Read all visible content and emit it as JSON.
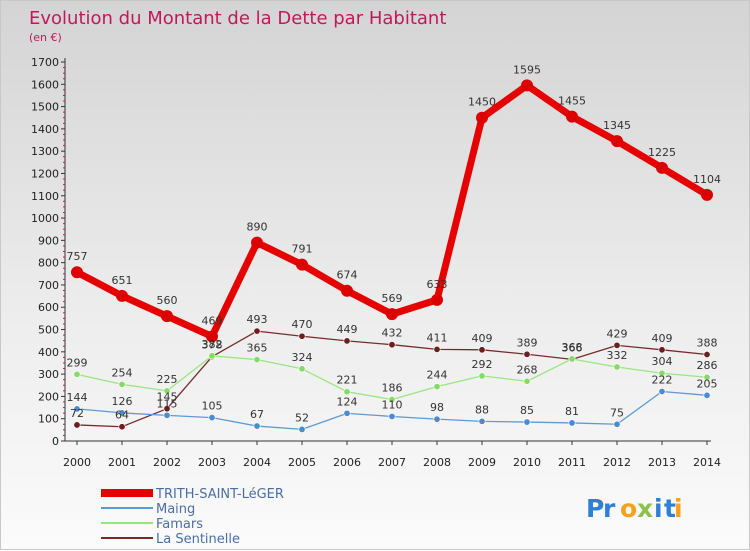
{
  "title": "Evolution du Montant de la Dette par Habitant",
  "subtitle": "(en €)",
  "logo": "Proxiti",
  "colors": {
    "title": "#c2185b",
    "legend_text": "#4a6fa5"
  },
  "chart_data": {
    "type": "line",
    "title": "Evolution du Montant de la Dette par Habitant",
    "subtitle": "(en €)",
    "x": [
      "2000",
      "2001",
      "2002",
      "2003",
      "2004",
      "2005",
      "2006",
      "2007",
      "2008",
      "2009",
      "2010",
      "2011",
      "2012",
      "2013",
      "2014"
    ],
    "ylim": [
      0,
      1700
    ],
    "yticks": [
      0,
      100,
      200,
      300,
      400,
      500,
      600,
      700,
      800,
      900,
      1000,
      1100,
      1200,
      1300,
      1400,
      1500,
      1600,
      1700
    ],
    "grid": false,
    "legend_position": "bottom-left",
    "series": [
      {
        "name": "TRITH-SAINT-LéGER",
        "color": "#e60000",
        "marker": "#dd0000",
        "width": 7,
        "values": [
          757,
          651,
          560,
          469,
          890,
          791,
          674,
          569,
          633,
          1450,
          1595,
          1455,
          1345,
          1225,
          1104
        ]
      },
      {
        "name": "Maing",
        "color": "#5b9bd5",
        "marker": "#4a8ccd",
        "width": 1.3,
        "values": [
          144,
          126,
          115,
          105,
          67,
          52,
          124,
          110,
          98,
          88,
          85,
          81,
          75,
          222,
          205
        ]
      },
      {
        "name": "Famars",
        "color": "#99e67f",
        "marker": "#86da6a",
        "width": 1.3,
        "values": [
          299,
          254,
          225,
          382,
          365,
          324,
          221,
          186,
          244,
          292,
          268,
          368,
          332,
          304,
          286
        ]
      },
      {
        "name": "La Sentinelle",
        "color": "#7a2a2a",
        "marker": "#6b1f1f",
        "width": 1.3,
        "values": [
          72,
          64,
          145,
          378,
          493,
          470,
          449,
          432,
          411,
          409,
          389,
          366,
          429,
          409,
          388
        ]
      }
    ]
  }
}
